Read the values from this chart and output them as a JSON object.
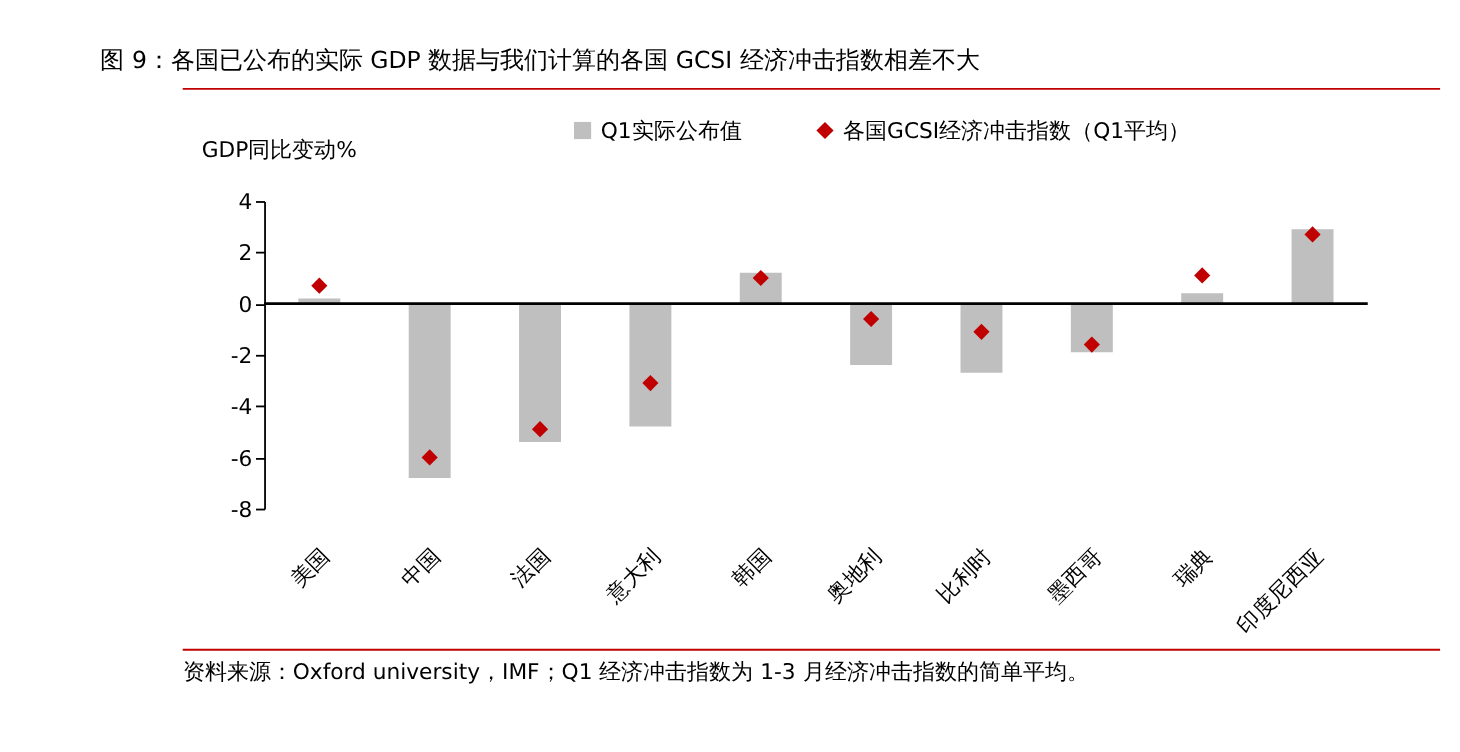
{
  "chart_data": {
    "type": "bar",
    "title": "图 9：各国已公布的实际 GDP 数据与我们计算的各国 GCSI 经济冲击指数相差不大",
    "ylabel": "GDP同比变动%",
    "categories": [
      "美国",
      "中国",
      "法国",
      "意大利",
      "韩国",
      "奥地利",
      "比利时",
      "墨西哥",
      "瑞典",
      "印度尼西亚"
    ],
    "series": [
      {
        "name": "Q1实际公布值",
        "color": "#bfbfbf",
        "values": [
          0.2,
          -6.8,
          -5.4,
          -4.8,
          1.2,
          -2.4,
          -2.7,
          -1.9,
          0.4,
          2.9
        ]
      },
      {
        "name": "各国GCSI经济冲击指数（Q1平均）",
        "type": "scatter",
        "marker": "diamond",
        "color": "#c00000",
        "values": [
          0.7,
          -6.0,
          -4.9,
          -3.1,
          1.0,
          -0.6,
          -1.1,
          -1.6,
          1.1,
          2.7
        ]
      }
    ],
    "ylim": [
      -8,
      4
    ],
    "yticks": [
      -8,
      -6,
      -4,
      -2,
      0,
      2,
      4
    ],
    "grid": false,
    "legend": "top",
    "ref_lines": [
      {
        "axis": "y",
        "value": 0,
        "color": "#000000"
      }
    ],
    "annotations": [
      "资料来源：Oxford university，IMF；Q1 经济冲击指数为 1-3 月经济冲击指数的简单平均。"
    ]
  }
}
